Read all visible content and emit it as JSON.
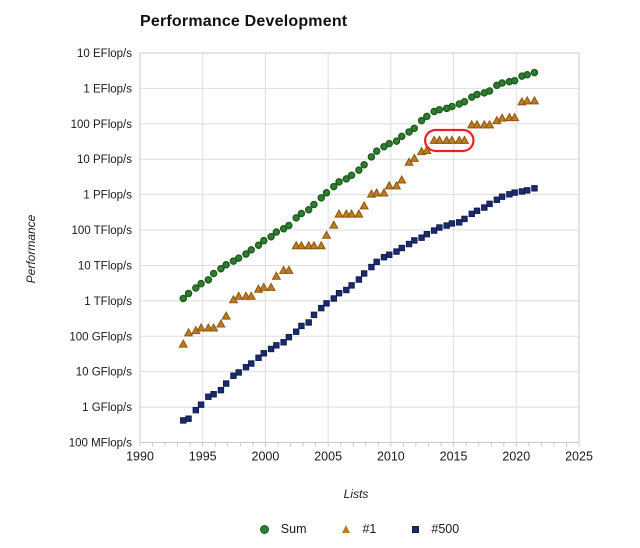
{
  "chart_data": {
    "type": "scatter",
    "title": "Performance Development",
    "xlabel": "Lists",
    "ylabel": "Performance",
    "xlim": [
      1990,
      2025
    ],
    "x_ticks": [
      1990,
      1995,
      2000,
      2005,
      2010,
      2015,
      2020,
      2025
    ],
    "x_minor_tick_step": 1,
    "y_scale": "log10",
    "y_unit": "GFlop/s",
    "ylim_log10": [
      -1,
      10
    ],
    "y_ticks": [
      {
        "label": "10 EFlop/s",
        "log10": 10
      },
      {
        "label": "1 EFlop/s",
        "log10": 9
      },
      {
        "label": "100 PFlop/s",
        "log10": 8
      },
      {
        "label": "10 PFlop/s",
        "log10": 7
      },
      {
        "label": "1 PFlop/s",
        "log10": 6
      },
      {
        "label": "100 TFlop/s",
        "log10": 5
      },
      {
        "label": "10 TFlop/s",
        "log10": 4
      },
      {
        "label": "1 TFlop/s",
        "log10": 3
      },
      {
        "label": "100 GFlop/s",
        "log10": 2
      },
      {
        "label": "10 GFlop/s",
        "log10": 1
      },
      {
        "label": "1 GFlop/s",
        "log10": 0
      },
      {
        "label": "100 MFlop/s",
        "log10": -1
      }
    ],
    "grid": true,
    "grid_color": "#dedede",
    "frame_color": "#c9c9c9",
    "legend_position": "bottom",
    "x": [
      1993.45,
      1993.87,
      1994.45,
      1994.87,
      1995.45,
      1995.87,
      1996.45,
      1996.87,
      1997.45,
      1997.87,
      1998.45,
      1998.87,
      1999.45,
      1999.87,
      2000.45,
      2000.87,
      2001.45,
      2001.87,
      2002.45,
      2002.87,
      2003.45,
      2003.87,
      2004.45,
      2004.87,
      2005.45,
      2005.87,
      2006.45,
      2006.87,
      2007.45,
      2007.87,
      2008.45,
      2008.87,
      2009.45,
      2009.87,
      2010.45,
      2010.87,
      2011.45,
      2011.87,
      2012.45,
      2012.87,
      2013.45,
      2013.87,
      2014.45,
      2014.87,
      2015.45,
      2015.87,
      2016.45,
      2016.87,
      2017.45,
      2017.87,
      2018.45,
      2018.87,
      2019.45,
      2019.87,
      2020.45,
      2020.87,
      2021.45
    ],
    "series": [
      {
        "name": "Sum",
        "marker": "circle",
        "fill": "#2f7d2f",
        "stroke": "#1d5a1d",
        "values": [
          1170,
          1620,
          2310,
          3060,
          3930,
          5930,
          8100,
          10500,
          13300,
          16100,
          21000,
          27500,
          37300,
          50100,
          64600,
          88100,
          108800,
          134300,
          220600,
          293000,
          374600,
          528000,
          813000,
          1127000,
          1690000,
          2300000,
          2790000,
          3530000,
          4920000,
          6970000,
          11700000,
          16950000,
          22600000,
          27600000,
          32400000,
          44200000,
          58900000,
          74200000,
          123400000,
          162000000,
          223000000,
          250000000,
          274000000,
          309000000,
          363000000,
          420000000,
          566700000,
          672000000,
          749000000,
          845000000,
          1220000000,
          1420000000,
          1560000000,
          1650000000,
          2220000000,
          2430000000,
          2800000000
        ]
      },
      {
        "name": "#1",
        "marker": "triangle",
        "fill": "#bf7c1f",
        "stroke": "#8a5713",
        "values": [
          59.7,
          124,
          143.4,
          170,
          170,
          170,
          220.4,
          368.2,
          1068,
          1338,
          1338,
          1338,
          2121,
          2379,
          2379,
          4938,
          7226,
          7226,
          35860,
          35860,
          35860,
          35860,
          35860,
          70720,
          136800,
          280600,
          280600,
          280600,
          280600,
          478200,
          1026000,
          1105000,
          1105000,
          1759000,
          1759000,
          2566000,
          8162000,
          10510000,
          16320000,
          17590000,
          33860000,
          33860000,
          33860000,
          33860000,
          33860000,
          33860000,
          93010000,
          93010000,
          93010000,
          93010000,
          122300000,
          143500000,
          148600000,
          148600000,
          415530000,
          442010000,
          442010000
        ]
      },
      {
        "name": "#500",
        "marker": "square",
        "fill": "#1c2b6e",
        "stroke": "#101d4f",
        "values": [
          0.42,
          0.47,
          0.82,
          1.17,
          1.96,
          2.31,
          3.01,
          4.62,
          7.68,
          9.51,
          13.4,
          17.0,
          24.7,
          33.1,
          43.8,
          55.4,
          67.8,
          94.3,
          134.4,
          195.8,
          245.2,
          403.4,
          624.8,
          850.6,
          1166,
          1646,
          2026,
          2737,
          4005,
          5930,
          9000,
          12640,
          17100,
          20050,
          24670,
          31110,
          40190,
          50920,
          60820,
          76460,
          96620,
          117800,
          133700,
          153600,
          164800,
          206300,
          286100,
          349300,
          432200,
          548700,
          716000,
          874800,
          1022000,
          1142000,
          1230000,
          1320000,
          1510000
        ]
      }
    ],
    "annotation": {
      "shape": "rounded-outline",
      "series": "#1",
      "x_from": 2013.45,
      "x_to": 2015.87,
      "value": 33860000,
      "color": "#e82222"
    }
  }
}
